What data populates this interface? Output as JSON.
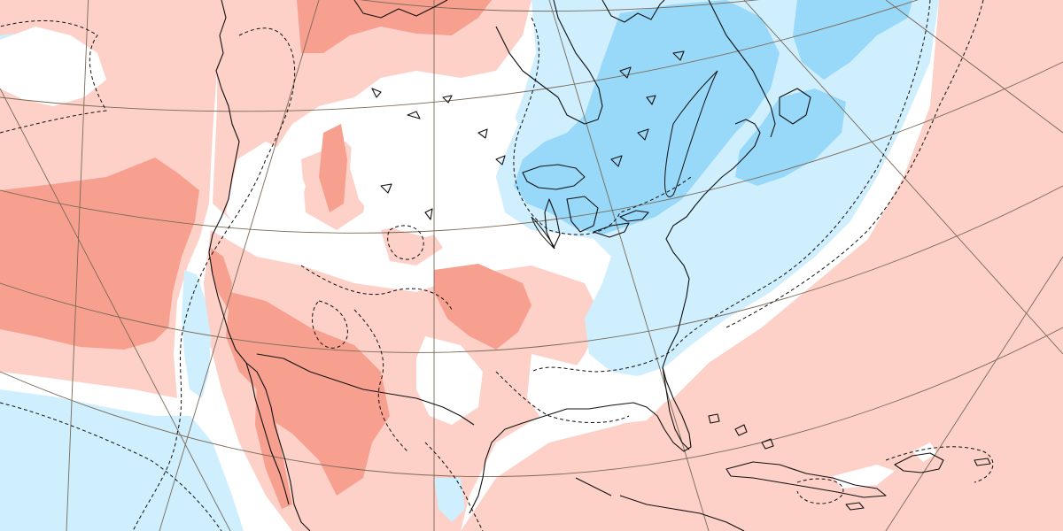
{
  "map": {
    "type": "temperature-anomaly-map",
    "region": "North America",
    "palette": {
      "background": "#ffffff",
      "warm_light": "#fdd0c8",
      "warm_medium": "#f7a090",
      "cool_light": "#cfeefe",
      "cool_medium": "#98d8f8",
      "coastline": "#111111",
      "graticule": "#7a6a55",
      "dashed_contour": "#111111"
    },
    "icons": [
      "coastline-shape",
      "graticule-line",
      "dashed-contour-line"
    ]
  }
}
